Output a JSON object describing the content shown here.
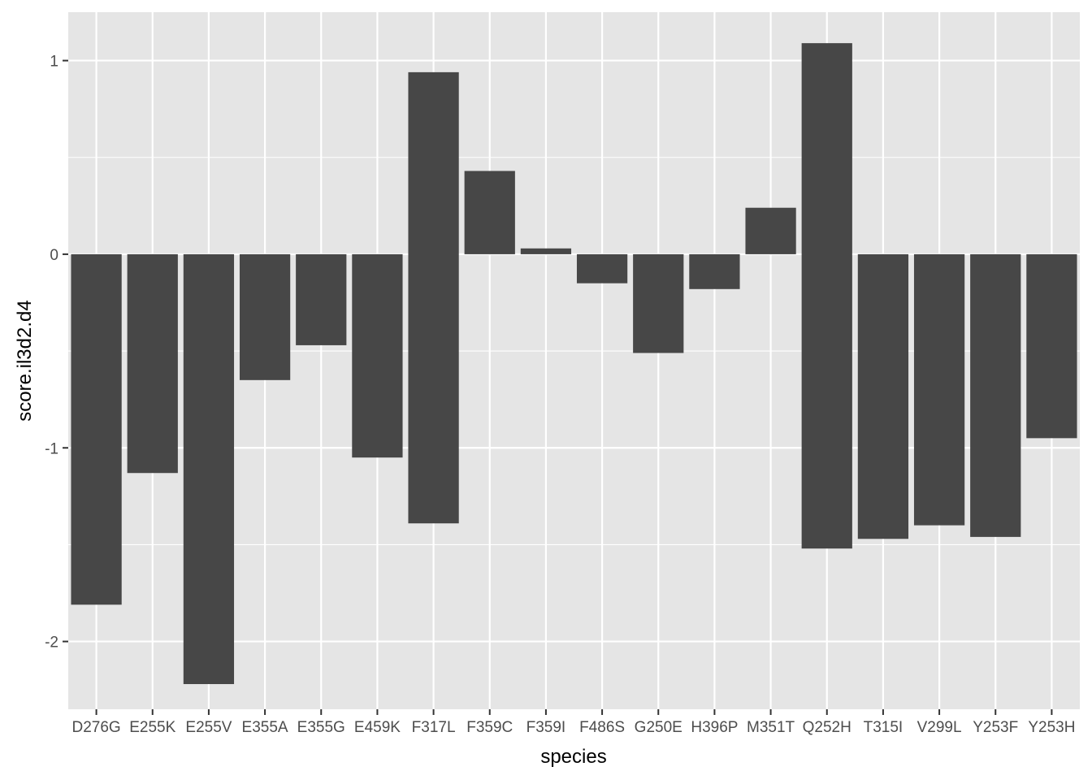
{
  "chart_data": {
    "type": "bar",
    "xlabel": "species",
    "ylabel": "score.il3d2.d4",
    "ylim": [
      -2.35,
      1.25
    ],
    "yticks": [
      -2,
      -1,
      0,
      1
    ],
    "ytick_labels": [
      "-2",
      "-1",
      "0",
      "1"
    ],
    "grid": true,
    "categories": [
      "D276G",
      "E255K",
      "E255V",
      "E355A",
      "E355G",
      "E459K",
      "F317L",
      "F359C",
      "F359I",
      "F486S",
      "G250E",
      "H396P",
      "M351T",
      "Q252H",
      "T315I",
      "V299L",
      "Y253F",
      "Y253H"
    ],
    "bars": [
      {
        "category": "D276G",
        "ymin": -1.81,
        "ymax": 0
      },
      {
        "category": "E255K",
        "ymin": -1.13,
        "ymax": 0
      },
      {
        "category": "E255V",
        "ymin": -2.22,
        "ymax": 0
      },
      {
        "category": "E355A",
        "ymin": -0.65,
        "ymax": 0
      },
      {
        "category": "E355G",
        "ymin": -0.47,
        "ymax": 0
      },
      {
        "category": "E459K",
        "ymin": -1.05,
        "ymax": 0
      },
      {
        "category": "F317L",
        "ymin": -1.39,
        "ymax": 0.94
      },
      {
        "category": "F359C",
        "ymin": 0,
        "ymax": 0.43
      },
      {
        "category": "F359I",
        "ymin": 0,
        "ymax": 0.03
      },
      {
        "category": "F486S",
        "ymin": -0.15,
        "ymax": 0
      },
      {
        "category": "G250E",
        "ymin": -0.51,
        "ymax": 0
      },
      {
        "category": "H396P",
        "ymin": -0.18,
        "ymax": 0
      },
      {
        "category": "M351T",
        "ymin": 0,
        "ymax": 0.24
      },
      {
        "category": "Q252H",
        "ymin": -1.52,
        "ymax": 1.09
      },
      {
        "category": "T315I",
        "ymin": -1.47,
        "ymax": 0
      },
      {
        "category": "V299L",
        "ymin": -1.4,
        "ymax": 0
      },
      {
        "category": "Y253F",
        "ymin": -1.46,
        "ymax": 0
      },
      {
        "category": "Y253H",
        "ymin": -0.95,
        "ymax": 0
      }
    ],
    "colors": {
      "bar": "#474747",
      "panel": "#e5e5e5",
      "grid": "#ffffff",
      "text": "#4d4d4d",
      "axis_title": "#000000"
    }
  }
}
